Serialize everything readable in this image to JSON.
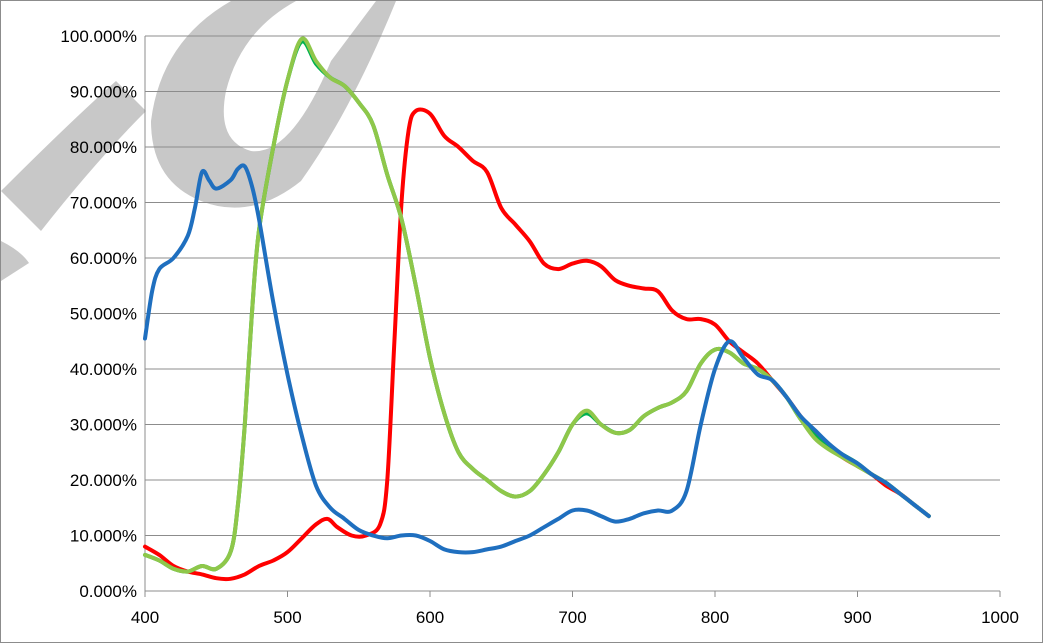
{
  "chart_data": {
    "type": "line",
    "title": "",
    "xlabel": "",
    "ylabel": "",
    "xlim": [
      400,
      1000
    ],
    "ylim": [
      0,
      100
    ],
    "x_ticks": [
      400,
      500,
      600,
      700,
      800,
      900,
      1000
    ],
    "x_tick_labels": [
      "400",
      "500",
      "600",
      "700",
      "800",
      "900",
      "1000"
    ],
    "y_ticks": [
      0,
      10,
      20,
      30,
      40,
      50,
      60,
      70,
      80,
      90,
      100
    ],
    "y_tick_labels": [
      "0.000%",
      "10.000%",
      "20.000%",
      "30.000%",
      "40.000%",
      "50.000%",
      "60.000%",
      "70.000%",
      "80.000%",
      "90.000%",
      "100.000%"
    ],
    "grid": "horizontal",
    "legend": "none",
    "series": [
      {
        "color": "#ff0000",
        "points": [
          [
            400,
            8
          ],
          [
            410,
            6.5
          ],
          [
            420,
            4.5
          ],
          [
            430,
            3.5
          ],
          [
            440,
            3
          ],
          [
            450,
            2.3
          ],
          [
            460,
            2.2
          ],
          [
            470,
            3
          ],
          [
            480,
            4.5
          ],
          [
            490,
            5.5
          ],
          [
            500,
            7
          ],
          [
            510,
            9.5
          ],
          [
            520,
            12
          ],
          [
            528,
            13
          ],
          [
            535,
            11.5
          ],
          [
            545,
            10
          ],
          [
            555,
            10
          ],
          [
            565,
            12
          ],
          [
            570,
            20
          ],
          [
            575,
            45
          ],
          [
            580,
            70
          ],
          [
            585,
            83
          ],
          [
            590,
            86.5
          ],
          [
            600,
            86
          ],
          [
            610,
            82
          ],
          [
            620,
            80
          ],
          [
            630,
            77.5
          ],
          [
            640,
            75.5
          ],
          [
            650,
            69
          ],
          [
            660,
            66
          ],
          [
            670,
            63
          ],
          [
            680,
            59
          ],
          [
            690,
            58
          ],
          [
            700,
            59
          ],
          [
            710,
            59.5
          ],
          [
            720,
            58.5
          ],
          [
            730,
            56
          ],
          [
            740,
            55
          ],
          [
            750,
            54.5
          ],
          [
            760,
            54
          ],
          [
            770,
            50.5
          ],
          [
            780,
            49
          ],
          [
            790,
            49
          ],
          [
            800,
            48
          ],
          [
            810,
            45
          ],
          [
            820,
            43
          ],
          [
            830,
            41
          ],
          [
            840,
            38
          ],
          [
            850,
            35
          ],
          [
            860,
            31.5
          ],
          [
            870,
            28.5
          ],
          [
            880,
            26
          ],
          [
            890,
            24
          ],
          [
            900,
            22.5
          ],
          [
            910,
            21
          ],
          [
            920,
            19
          ],
          [
            930,
            17.5
          ],
          [
            940,
            15.5
          ],
          [
            950,
            13.5
          ]
        ]
      },
      {
        "color": "#00b050",
        "points": [
          [
            400,
            6.5
          ],
          [
            410,
            5.5
          ],
          [
            420,
            4
          ],
          [
            430,
            3.5
          ],
          [
            440,
            4.5
          ],
          [
            450,
            4
          ],
          [
            460,
            7
          ],
          [
            465,
            15
          ],
          [
            470,
            30
          ],
          [
            475,
            50
          ],
          [
            480,
            65
          ],
          [
            490,
            80
          ],
          [
            500,
            92
          ],
          [
            510,
            99
          ],
          [
            520,
            95
          ],
          [
            530,
            92.5
          ],
          [
            540,
            91
          ],
          [
            550,
            88
          ],
          [
            560,
            84
          ],
          [
            570,
            75
          ],
          [
            580,
            67
          ],
          [
            590,
            55
          ],
          [
            600,
            42
          ],
          [
            610,
            32
          ],
          [
            620,
            25
          ],
          [
            630,
            22
          ],
          [
            640,
            20
          ],
          [
            650,
            18
          ],
          [
            660,
            17
          ],
          [
            670,
            18
          ],
          [
            680,
            21
          ],
          [
            690,
            25
          ],
          [
            700,
            30
          ],
          [
            710,
            32
          ],
          [
            720,
            30
          ],
          [
            730,
            28.5
          ],
          [
            740,
            29
          ],
          [
            750,
            31.5
          ],
          [
            760,
            33
          ],
          [
            770,
            34
          ],
          [
            780,
            36
          ],
          [
            790,
            41
          ],
          [
            800,
            43.5
          ],
          [
            810,
            43
          ],
          [
            820,
            41
          ],
          [
            830,
            40
          ],
          [
            840,
            38
          ],
          [
            850,
            35
          ],
          [
            860,
            31
          ],
          [
            870,
            28
          ],
          [
            880,
            26
          ],
          [
            890,
            24.5
          ],
          [
            900,
            23
          ],
          [
            910,
            21
          ],
          [
            920,
            19.5
          ],
          [
            930,
            17.5
          ],
          [
            940,
            15.5
          ],
          [
            950,
            13.5
          ]
        ]
      },
      {
        "color": "#8fc74a",
        "points": [
          [
            400,
            6.5
          ],
          [
            410,
            5.5
          ],
          [
            420,
            4
          ],
          [
            430,
            3.5
          ],
          [
            440,
            4.5
          ],
          [
            450,
            4
          ],
          [
            460,
            7
          ],
          [
            465,
            15
          ],
          [
            470,
            30
          ],
          [
            475,
            50
          ],
          [
            480,
            65
          ],
          [
            490,
            80
          ],
          [
            500,
            92
          ],
          [
            510,
            99.5
          ],
          [
            520,
            95.5
          ],
          [
            530,
            92.5
          ],
          [
            540,
            91
          ],
          [
            550,
            88
          ],
          [
            560,
            84
          ],
          [
            570,
            75
          ],
          [
            580,
            67
          ],
          [
            590,
            55
          ],
          [
            600,
            42
          ],
          [
            610,
            32
          ],
          [
            620,
            25
          ],
          [
            630,
            22
          ],
          [
            640,
            20
          ],
          [
            650,
            18
          ],
          [
            660,
            17
          ],
          [
            670,
            18
          ],
          [
            680,
            21
          ],
          [
            690,
            25
          ],
          [
            700,
            30
          ],
          [
            710,
            32.5
          ],
          [
            720,
            30
          ],
          [
            730,
            28.5
          ],
          [
            740,
            29
          ],
          [
            750,
            31.5
          ],
          [
            760,
            33
          ],
          [
            770,
            34
          ],
          [
            780,
            36
          ],
          [
            790,
            41
          ],
          [
            800,
            43.5
          ],
          [
            810,
            43
          ],
          [
            820,
            41
          ],
          [
            830,
            40
          ],
          [
            840,
            38
          ],
          [
            850,
            35
          ],
          [
            860,
            31
          ],
          [
            870,
            27.5
          ],
          [
            880,
            25.5
          ],
          [
            890,
            24
          ],
          [
            900,
            22.5
          ],
          [
            910,
            21
          ],
          [
            920,
            19.5
          ],
          [
            930,
            17.5
          ],
          [
            940,
            15.5
          ],
          [
            950,
            13.5
          ]
        ]
      },
      {
        "color": "#1f6fbf",
        "points": [
          [
            400,
            45.5
          ],
          [
            405,
            54
          ],
          [
            410,
            58
          ],
          [
            420,
            60
          ],
          [
            430,
            64
          ],
          [
            435,
            69
          ],
          [
            440,
            75.5
          ],
          [
            445,
            74
          ],
          [
            450,
            72.5
          ],
          [
            460,
            74
          ],
          [
            465,
            76
          ],
          [
            470,
            76.5
          ],
          [
            475,
            73
          ],
          [
            480,
            67
          ],
          [
            490,
            52
          ],
          [
            500,
            39
          ],
          [
            510,
            28
          ],
          [
            520,
            19
          ],
          [
            530,
            15
          ],
          [
            540,
            13
          ],
          [
            550,
            11
          ],
          [
            560,
            10
          ],
          [
            570,
            9.5
          ],
          [
            580,
            10
          ],
          [
            590,
            10
          ],
          [
            600,
            9
          ],
          [
            610,
            7.5
          ],
          [
            620,
            7
          ],
          [
            630,
            7
          ],
          [
            640,
            7.5
          ],
          [
            650,
            8
          ],
          [
            660,
            9
          ],
          [
            670,
            10
          ],
          [
            680,
            11.5
          ],
          [
            690,
            13
          ],
          [
            700,
            14.5
          ],
          [
            710,
            14.5
          ],
          [
            720,
            13.5
          ],
          [
            730,
            12.5
          ],
          [
            740,
            13
          ],
          [
            750,
            14
          ],
          [
            760,
            14.5
          ],
          [
            770,
            14.5
          ],
          [
            780,
            18
          ],
          [
            790,
            30
          ],
          [
            800,
            40
          ],
          [
            810,
            45
          ],
          [
            820,
            42
          ],
          [
            830,
            39
          ],
          [
            840,
            38
          ],
          [
            850,
            35
          ],
          [
            860,
            31.5
          ],
          [
            870,
            29
          ],
          [
            880,
            26.5
          ],
          [
            890,
            24.5
          ],
          [
            900,
            23
          ],
          [
            910,
            21
          ],
          [
            920,
            19.5
          ],
          [
            930,
            17.5
          ],
          [
            940,
            15.5
          ],
          [
            950,
            13.5
          ]
        ]
      }
    ]
  },
  "watermark_color": "#c8c8c8"
}
